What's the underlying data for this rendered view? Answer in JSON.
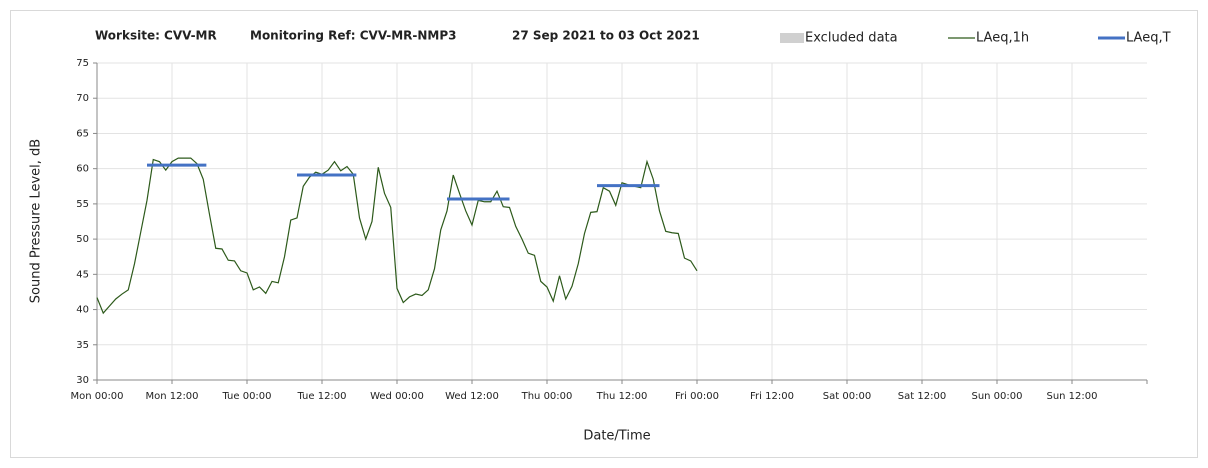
{
  "chart_data": {
    "type": "line",
    "title_parts": [
      "Worksite: CVV-MR",
      "Monitoring Ref: CVV-MR-NMP3",
      "27 Sep 2021 to 03 Oct 2021"
    ],
    "xlabel": "Date/Time",
    "ylabel": "Sound Pressure Level, dB",
    "xlim": [
      0,
      168
    ],
    "ylim": [
      30,
      75
    ],
    "yticks": [
      30,
      35,
      40,
      45,
      50,
      55,
      60,
      65,
      70,
      75
    ],
    "xticks": [
      {
        "value": 0,
        "label": "Mon 00:00"
      },
      {
        "value": 12,
        "label": "Mon 12:00"
      },
      {
        "value": 24,
        "label": "Tue 00:00"
      },
      {
        "value": 36,
        "label": "Tue 12:00"
      },
      {
        "value": 48,
        "label": "Wed 00:00"
      },
      {
        "value": 60,
        "label": "Wed 12:00"
      },
      {
        "value": 72,
        "label": "Thu 00:00"
      },
      {
        "value": 84,
        "label": "Thu 12:00"
      },
      {
        "value": 96,
        "label": "Fri 00:00"
      },
      {
        "value": 108,
        "label": "Fri 12:00"
      },
      {
        "value": 120,
        "label": "Sat 00:00"
      },
      {
        "value": 132,
        "label": "Sat 12:00"
      },
      {
        "value": 144,
        "label": "Sun 00:00"
      },
      {
        "value": 156,
        "label": "Sun 12:00"
      }
    ],
    "grid": true,
    "excluded": {
      "name": "Excluded data",
      "color": "#d0d0d0"
    },
    "x": [
      0,
      1,
      2,
      3,
      4,
      5,
      6,
      7,
      8,
      9,
      10,
      11,
      12,
      13,
      14,
      15,
      16,
      17,
      18,
      19,
      20,
      21,
      22,
      23,
      24,
      25,
      26,
      27,
      28,
      29,
      30,
      31,
      32,
      33,
      34,
      35,
      36,
      37,
      38,
      39,
      40,
      41,
      42,
      43,
      44,
      45,
      46,
      47,
      48,
      49,
      50,
      51,
      52,
      53,
      54,
      55,
      56,
      57,
      58,
      59,
      60,
      61,
      62,
      63,
      64,
      65,
      66,
      67,
      68,
      69,
      70,
      71,
      72,
      73,
      74,
      75,
      76,
      77,
      78,
      79,
      80,
      81,
      82,
      83,
      84,
      85,
      86,
      87,
      88,
      89,
      90,
      91,
      92,
      93,
      94,
      95,
      96
    ],
    "series": [
      {
        "name": "LAeq,1h",
        "color": "#2d5a1b",
        "values": [
          41.7,
          39.5,
          40.5,
          41.5,
          42.2,
          42.8,
          46.5,
          51,
          55.5,
          61.3,
          61,
          59.8,
          61,
          61.5,
          61.5,
          61.5,
          60.7,
          58.5,
          53.5,
          48.7,
          48.6,
          47,
          46.9,
          45.5,
          45.2,
          42.8,
          43.2,
          42.3,
          44,
          43.8,
          47.5,
          52.7,
          53,
          57.5,
          58.8,
          59.5,
          59.2,
          59.8,
          61,
          59.7,
          60.3,
          59.2,
          53,
          50,
          52.5,
          60.2,
          56.5,
          54.5,
          43,
          41,
          41.8,
          42.2,
          42,
          42.8,
          45.8,
          51.3,
          54,
          59.1,
          56.5,
          54,
          52,
          55.5,
          55.3,
          55.3,
          56.8,
          54.6,
          54.5,
          51.8,
          50,
          48,
          47.7,
          44,
          43.2,
          41.2,
          44.8,
          41.5,
          43.3,
          46.5,
          50.8,
          53.8,
          53.9,
          57.3,
          56.8,
          54.8,
          58,
          57.7,
          57.5,
          57.3,
          61,
          58.5,
          54,
          51.1,
          50.9,
          50.8,
          47.3,
          46.9,
          45.5
        ]
      }
    ],
    "periods": {
      "name": "LAeq,T",
      "color": "#4472c4",
      "start": [
        8,
        32,
        56,
        80
      ],
      "end": [
        17.5,
        41.5,
        66,
        90
      ],
      "values": [
        60.5,
        59.1,
        55.7,
        57.6
      ]
    }
  }
}
